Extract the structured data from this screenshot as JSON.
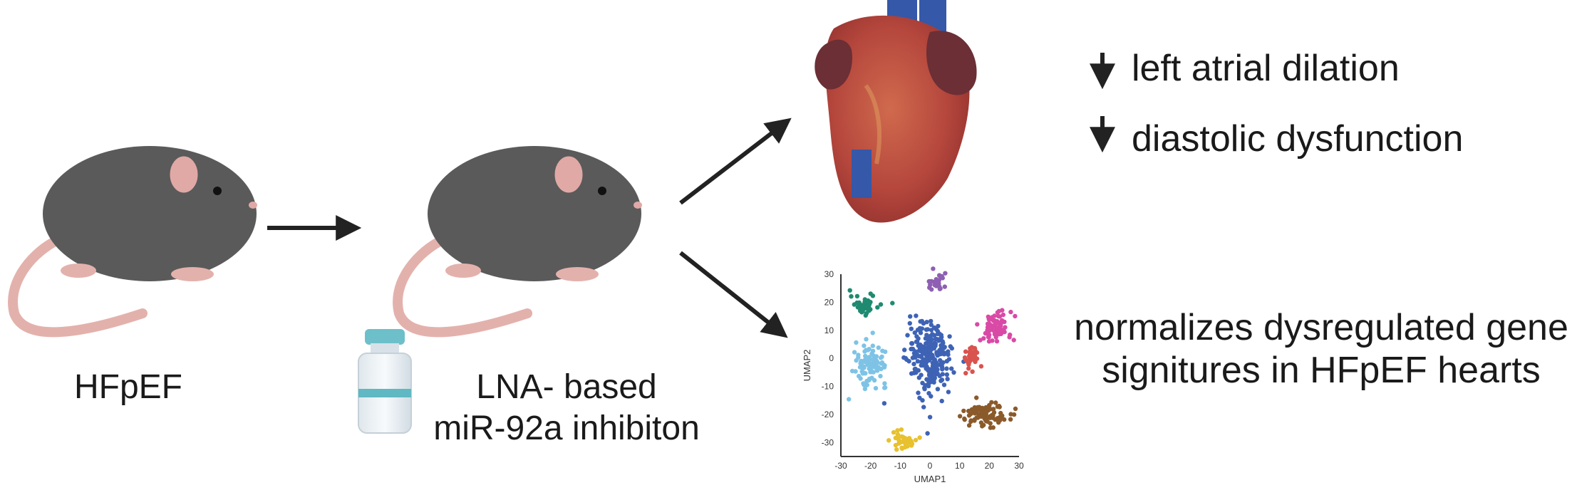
{
  "labels": {
    "hfpef": "HFpEF",
    "treatment_line1": "LNA- based",
    "treatment_line2": "miR-92a inhibiton"
  },
  "outcomes": {
    "heart_1": "left atrial dilation",
    "heart_2": "diastolic dysfunction",
    "umap_line1": "normalizes dysregulated gene",
    "umap_line2": "signitures in HFpEF hearts"
  },
  "colors": {
    "mouse_body": "#5a5a5a",
    "mouse_tail": "#e3b1ac",
    "arrow": "#222222",
    "heart_muscle": "#b5473d",
    "heart_atria": "#6b2f35",
    "vessel_blue": "#3558a8",
    "vial_band": "#5fb8c2"
  },
  "chart_data": {
    "type": "scatter",
    "xlabel": "UMAP1",
    "ylabel": "UMAP2",
    "xlim": [
      -30,
      30
    ],
    "ylim": [
      -35,
      30
    ],
    "x_ticks": [
      "-30",
      "-20",
      "-10",
      "0",
      "10",
      "20",
      "30"
    ],
    "y_ticks": [
      "30",
      "20",
      "10",
      "0",
      "-10",
      "-20",
      "-30"
    ],
    "clusters": [
      {
        "color": "#1f8a70",
        "center": [
          -22,
          19
        ],
        "spread": [
          4,
          3
        ],
        "count": 45
      },
      {
        "color": "#8e5fb3",
        "center": [
          2,
          27
        ],
        "spread": [
          3,
          2.5
        ],
        "count": 30
      },
      {
        "color": "#d94aa6",
        "center": [
          22,
          11
        ],
        "spread": [
          4.5,
          5
        ],
        "count": 80
      },
      {
        "color": "#7ec3e6",
        "center": [
          -20,
          -2
        ],
        "spread": [
          4.5,
          6
        ],
        "count": 95
      },
      {
        "color": "#3e63b5",
        "center": [
          0,
          0
        ],
        "spread": [
          6,
          11
        ],
        "count": 260
      },
      {
        "color": "#d9534f",
        "center": [
          14,
          1
        ],
        "spread": [
          2.5,
          4
        ],
        "count": 40
      },
      {
        "color": "#8b5a2b",
        "center": [
          19,
          -20
        ],
        "spread": [
          6,
          3.5
        ],
        "count": 90
      },
      {
        "color": "#e8c12e",
        "center": [
          -9,
          -29
        ],
        "spread": [
          3.5,
          2.5
        ],
        "count": 40
      }
    ]
  }
}
